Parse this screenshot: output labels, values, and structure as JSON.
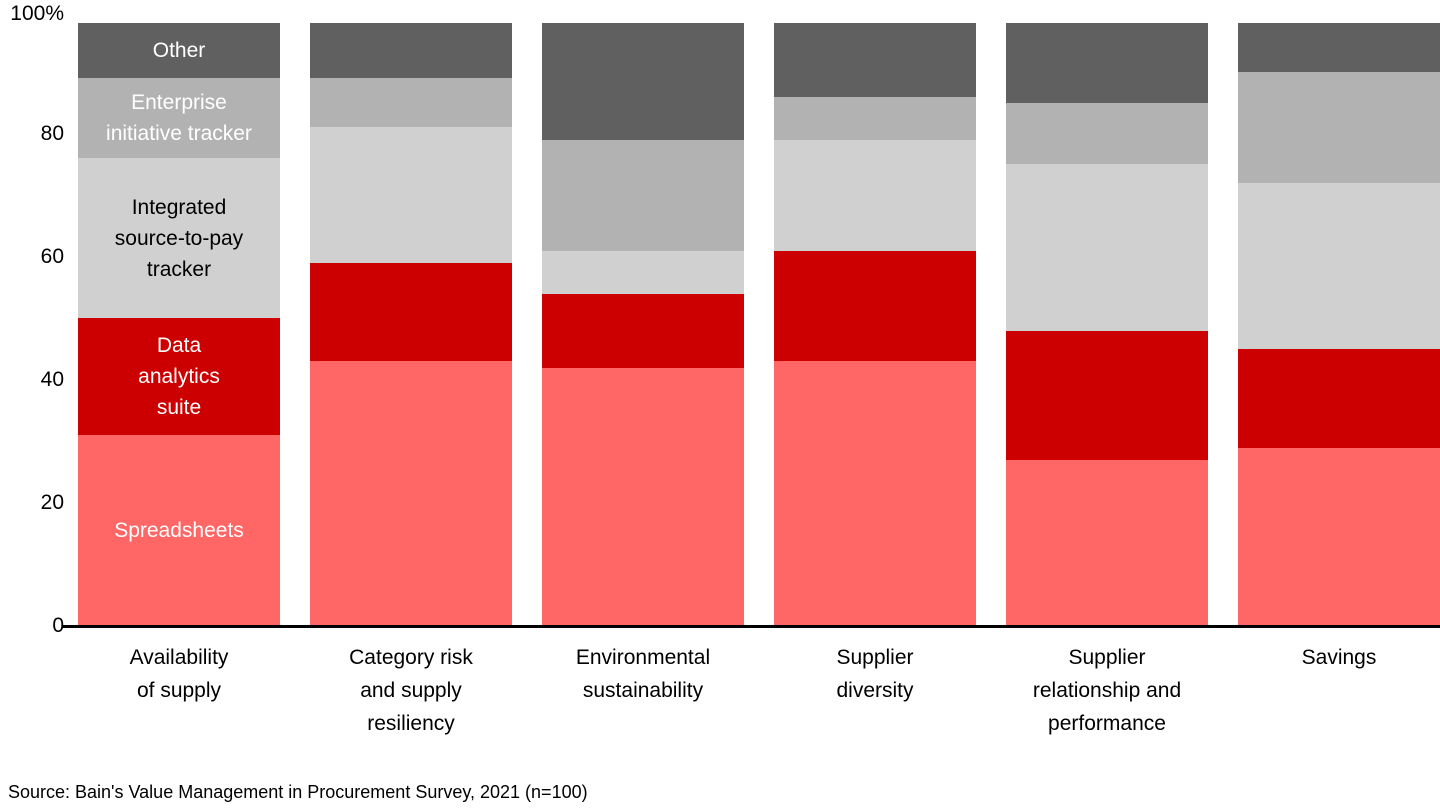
{
  "chart_data": {
    "type": "bar",
    "subtype": "stacked-100",
    "title": "",
    "xlabel": "",
    "ylabel": "",
    "ylim": [
      0,
      100
    ],
    "grid": false,
    "legend_position": "labels-inside-first-bar",
    "background_color": "#ffffff",
    "axis_color": "#000000",
    "categories": [
      {
        "label_lines": [
          "Availability",
          "of supply"
        ]
      },
      {
        "label_lines": [
          "Category risk",
          "and supply",
          "resiliency"
        ]
      },
      {
        "label_lines": [
          "Environmental",
          "sustainability"
        ]
      },
      {
        "label_lines": [
          "Supplier",
          "diversity"
        ]
      },
      {
        "label_lines": [
          "Supplier",
          "relationship and",
          "performance"
        ]
      },
      {
        "label_lines": [
          "Savings"
        ]
      }
    ],
    "series": [
      {
        "name": "Spreadsheets",
        "color": "#ff6666",
        "label_color": "#ffffff",
        "label_lines": [
          "Spreadsheets"
        ],
        "values": [
          31,
          43,
          42,
          43,
          27,
          29
        ]
      },
      {
        "name": "Data analytics suite",
        "color": "#cc0000",
        "label_color": "#ffffff",
        "label_lines": [
          "Data",
          "analytics",
          "suite"
        ],
        "values": [
          19,
          16,
          12,
          18,
          21,
          16
        ]
      },
      {
        "name": "Integrated source-to-pay tracker",
        "color": "#d0d0d0",
        "label_color": "#000000",
        "label_lines": [
          "Integrated",
          "source-to-pay",
          "tracker"
        ],
        "values": [
          26,
          22,
          7,
          18,
          27,
          27
        ]
      },
      {
        "name": "Enterprise initiative tracker",
        "color": "#b2b2b2",
        "label_color": "#ffffff",
        "label_lines": [
          "Enterprise",
          "initiative tracker"
        ],
        "values": [
          13,
          8,
          18,
          7,
          10,
          18
        ]
      },
      {
        "name": "Other",
        "color": "#606060",
        "label_color": "#ffffff",
        "label_lines": [
          "Other"
        ],
        "values": [
          9,
          9,
          19,
          12,
          13,
          8
        ]
      }
    ],
    "y_axis": {
      "ticks": [
        "0",
        "20",
        "40",
        "60",
        "80",
        "100%"
      ],
      "tick_values": [
        0,
        20,
        40,
        60,
        80,
        100
      ]
    },
    "source": "Source: Bain's Value Management in Procurement Survey, 2021 (n=100)"
  }
}
